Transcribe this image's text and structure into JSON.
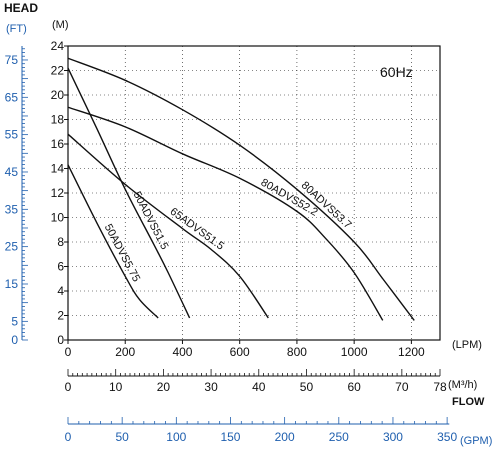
{
  "chart_data": {
    "type": "line",
    "badge": "60Hz",
    "y_title": "HEAD",
    "y_left_unit": "(FT)",
    "y_right_unit": "(M)",
    "x_unit_lpm": "(LPM)",
    "x_unit_m3h": "(M³/h)",
    "x_unit_gpm": "(GPM)",
    "flow_label": "FLOW",
    "ylim_m": [
      0,
      24
    ],
    "xlim_lpm": [
      0,
      1300
    ],
    "y_ticks_m": [
      0,
      2,
      4,
      6,
      8,
      10,
      12,
      14,
      16,
      18,
      20,
      22,
      24
    ],
    "y_ticks_ft": [
      0,
      5,
      15,
      25,
      35,
      45,
      55,
      65,
      75
    ],
    "x_ticks_lpm": [
      0,
      200,
      400,
      600,
      800,
      1000,
      1200
    ],
    "x_ticks_m3h": [
      0,
      10,
      20,
      30,
      40,
      50,
      60,
      70,
      78
    ],
    "x_ticks_gpm": [
      0,
      50,
      100,
      150,
      200,
      250,
      300,
      350
    ],
    "colors": {
      "curves": "#111111",
      "ft_axis": "#1f5fae",
      "gpm_axis": "#1f5fae"
    },
    "series": [
      {
        "name": "50ADVS5.75",
        "x": [
          0,
          100,
          200,
          250,
          315
        ],
        "y": [
          14.3,
          9.6,
          5.2,
          3.3,
          1.8
        ]
      },
      {
        "name": "50ADVS51.5",
        "x": [
          0,
          100,
          200,
          300,
          350,
          425
        ],
        "y": [
          22.2,
          17.3,
          12.3,
          7.8,
          5.5,
          1.8
        ]
      },
      {
        "name": "65ADVS51.5",
        "x": [
          0,
          200,
          400,
          500,
          600,
          700
        ],
        "y": [
          16.8,
          12.7,
          9.1,
          7.4,
          5.2,
          1.8
        ]
      },
      {
        "name": "80ADVS52.2",
        "x": [
          0,
          200,
          400,
          600,
          800,
          900,
          1000,
          1100
        ],
        "y": [
          19.0,
          17.4,
          15.2,
          13.2,
          10.5,
          8.3,
          5.5,
          1.6
        ]
      },
      {
        "name": "80ADVS53.7",
        "x": [
          0,
          200,
          400,
          600,
          800,
          1000,
          1100,
          1210
        ],
        "y": [
          23.0,
          21.2,
          18.8,
          15.9,
          12.3,
          8.0,
          5.0,
          1.6
        ]
      }
    ]
  }
}
